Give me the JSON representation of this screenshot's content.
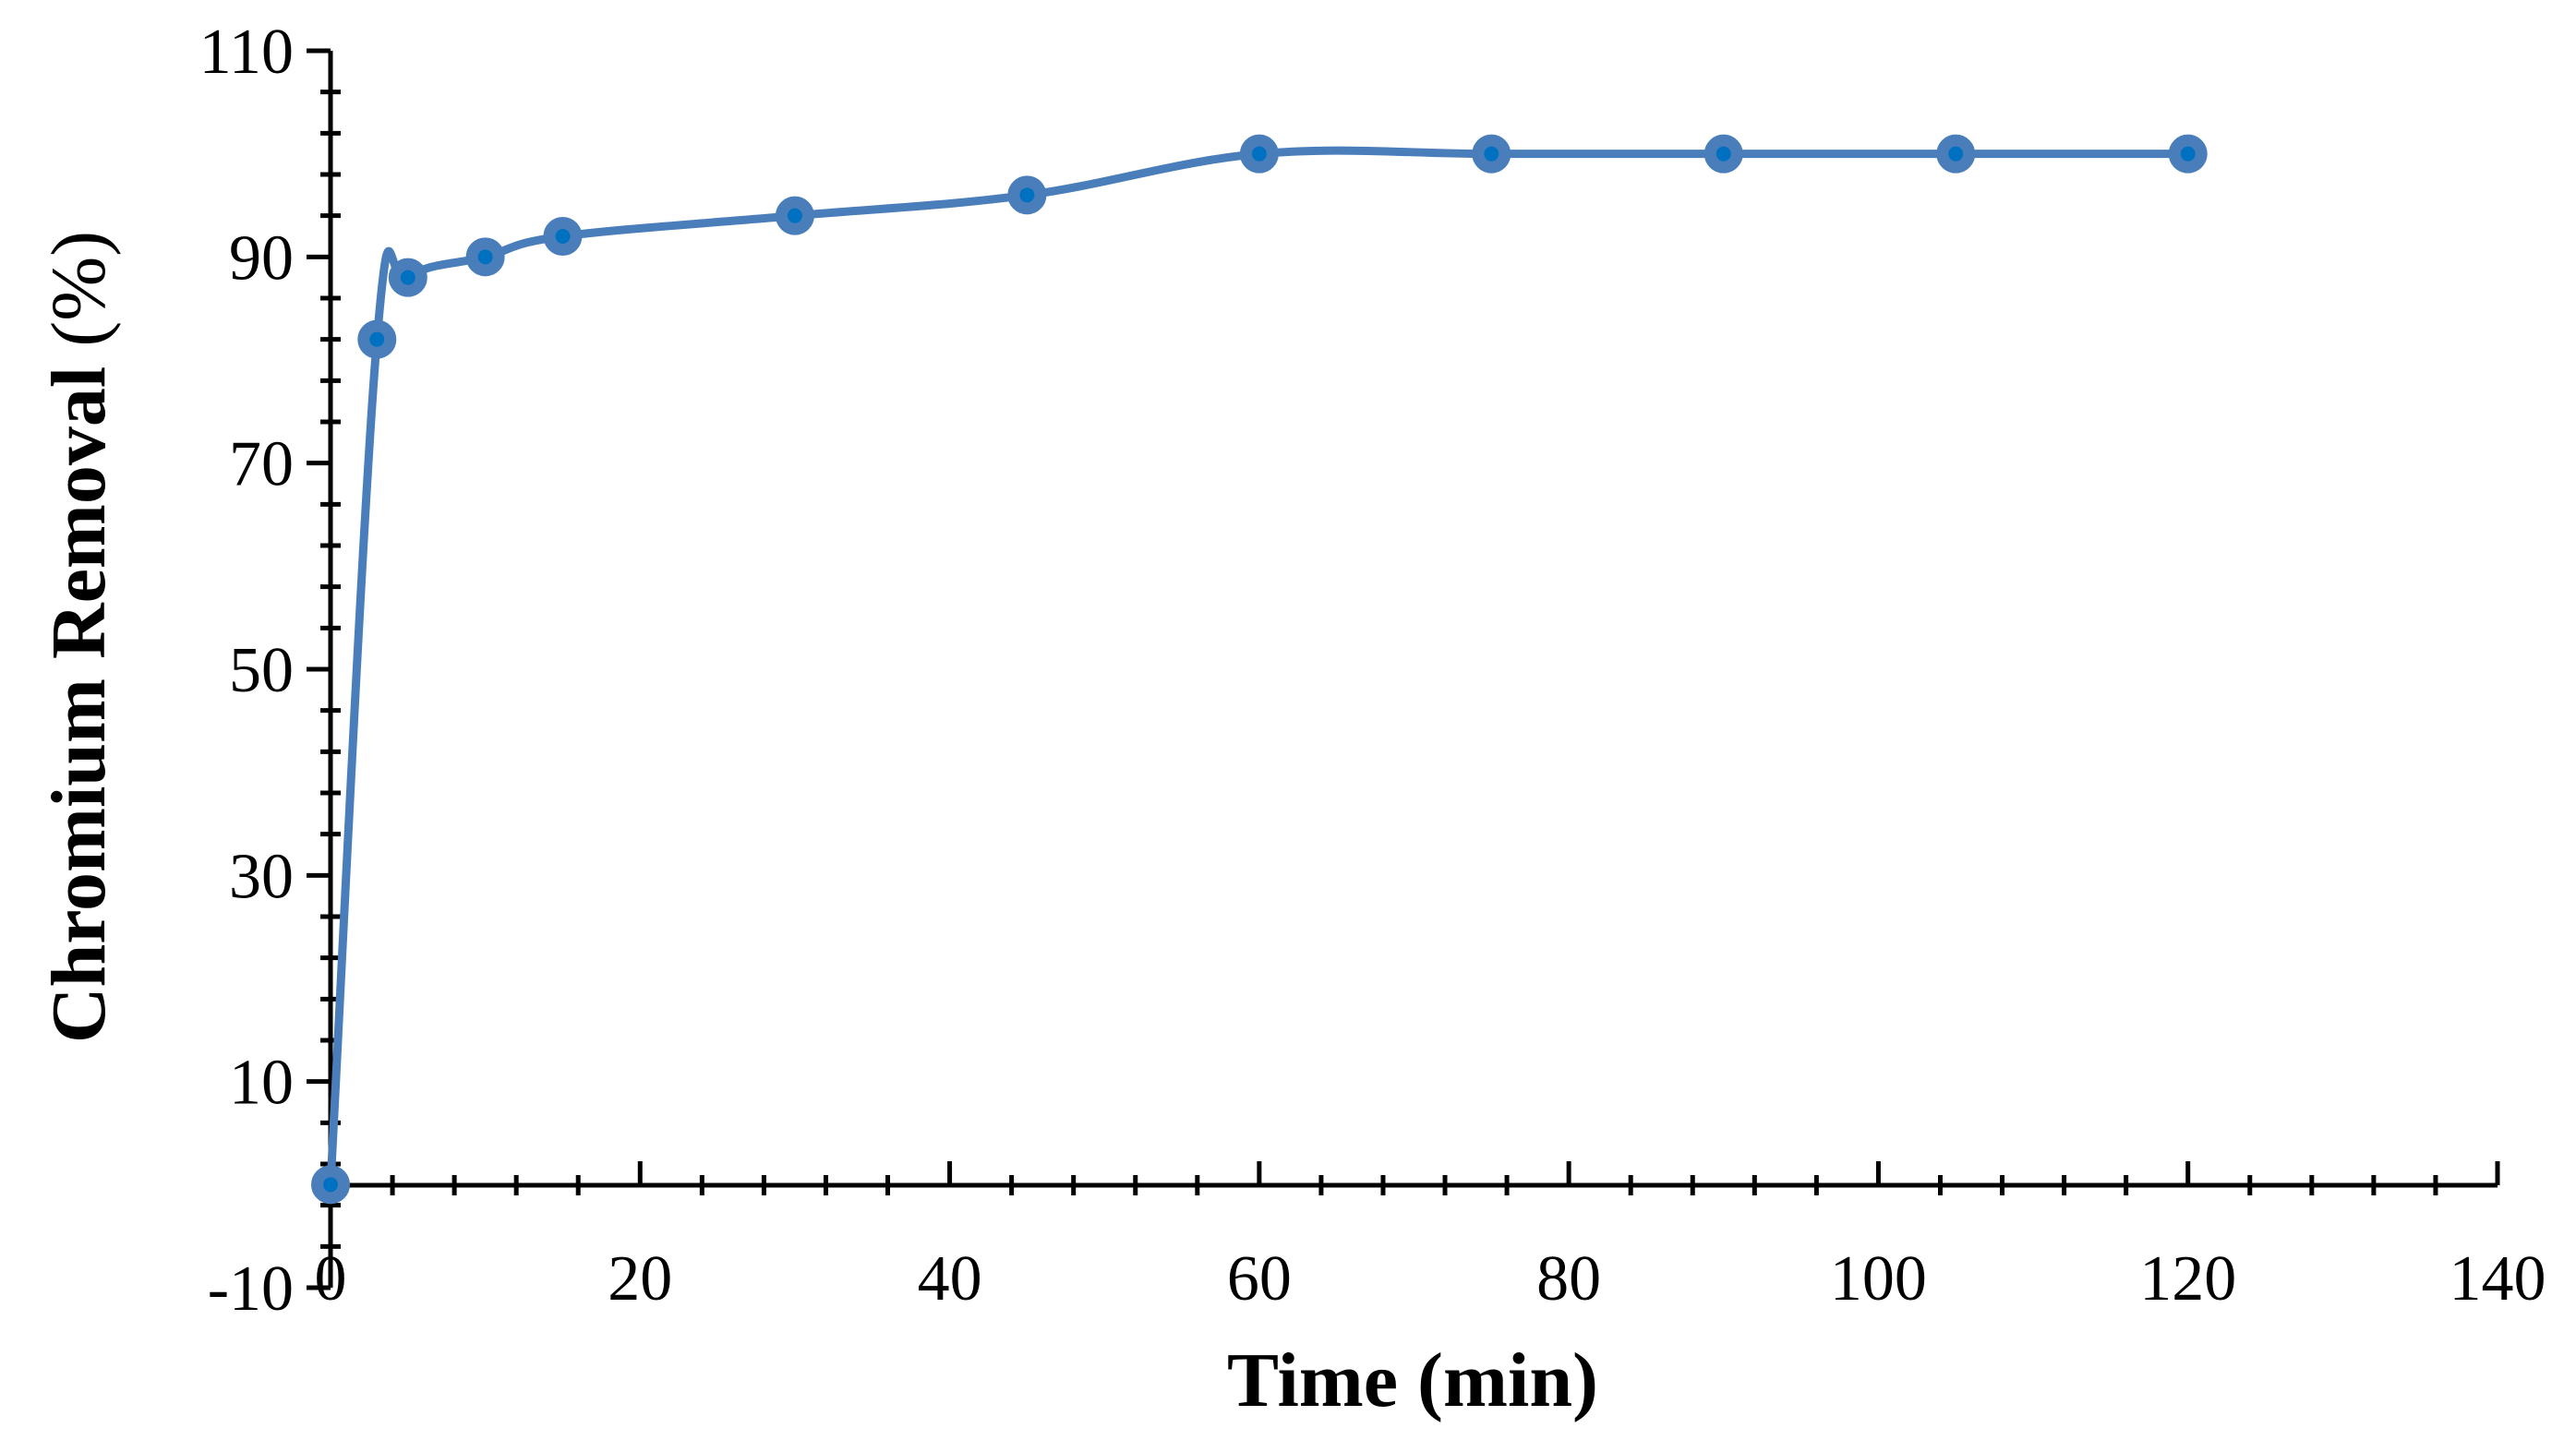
{
  "chart_data": {
    "type": "line",
    "title": "",
    "xlabel": "Time (min)",
    "ylabel_main": "Chromium Removal",
    "ylabel_unit": " (%)",
    "xlim": [
      0,
      140
    ],
    "ylim": [
      -10,
      110
    ],
    "x_ticks": [
      0,
      20,
      40,
      60,
      80,
      100,
      120,
      140
    ],
    "y_ticks": [
      -10,
      10,
      30,
      50,
      70,
      90,
      110
    ],
    "grid": false,
    "legend": "none",
    "series": [
      {
        "color": "#4a7ebb",
        "marker_color": "#0070c0",
        "x": [
          0,
          3,
          5,
          10,
          15,
          30,
          45,
          60,
          75,
          90,
          105,
          120
        ],
        "y": [
          0,
          82,
          88,
          90,
          92,
          94,
          96,
          100,
          100,
          100,
          100,
          100
        ]
      }
    ]
  }
}
